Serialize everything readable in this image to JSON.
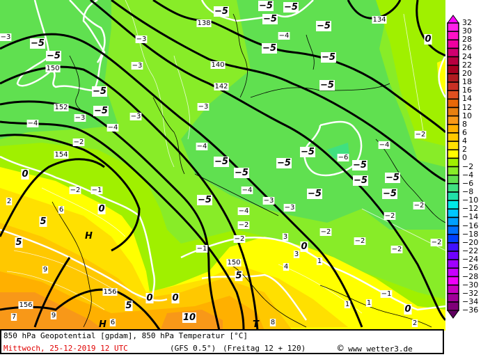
{
  "map": {
    "title": "850 hPa Geopotential [gpdam], 850 hPa Temperatur [°C]",
    "date": "Mittwoch, 25-12-2019  12 UTC",
    "model": "(GFS 0.5°)",
    "run": "(Freitag 12 + 120)",
    "copyright_symbol": "©",
    "source": "www wetter3.de",
    "geopotential_labels": [
      "138",
      "140",
      "142",
      "150",
      "152",
      "154",
      "156",
      "156",
      "150",
      "134"
    ],
    "temp_bold_labels": [
      "-5",
      "-5",
      "-5",
      "-5",
      "-5",
      "-5",
      "-5",
      "-5",
      "-5",
      "-5",
      "-5",
      "-5",
      "-5",
      "-5",
      "-5",
      "-5",
      "-5",
      "-5",
      "-5",
      "-5",
      "-5",
      "-5",
      "0",
      "0",
      "0",
      "0",
      "0",
      "0",
      "0",
      "5",
      "5",
      "5",
      "5",
      "10"
    ],
    "temp_labels": [
      "-3",
      "-3",
      "-3",
      "-3",
      "-3",
      "-3",
      "-3",
      "-4",
      "-4",
      "-4",
      "-4",
      "-4",
      "-2",
      "-2",
      "-2",
      "-2",
      "-2",
      "-2",
      "-2",
      "-2",
      "-1",
      "-1",
      "-1",
      "3",
      "2",
      "6",
      "9",
      "7",
      "9",
      "6",
      "8",
      "4",
      "3",
      "1",
      "1",
      "1",
      "2",
      "-6",
      "-4",
      "-2",
      "-2",
      "-3",
      "-4",
      "-2"
    ],
    "pressure_centers": [
      "H",
      "H",
      "T"
    ]
  },
  "legend": {
    "colors": [
      "#ff20e8",
      "#ff10c8",
      "#f000a0",
      "#d00070",
      "#b80040",
      "#a80020",
      "#b01c20",
      "#c83024",
      "#e05020",
      "#e86808",
      "#e88010",
      "#f89818",
      "#ffb000",
      "#ffc800",
      "#ffe000",
      "#ffff00",
      "#a0f000",
      "#88ec28",
      "#60e050",
      "#40e080",
      "#20e0a8",
      "#00e8e8",
      "#00c8ff",
      "#00a0ff",
      "#0070ff",
      "#0040ff",
      "#4010ff",
      "#7000ff",
      "#a000ff",
      "#c800ff",
      "#f000f8",
      "#c800c0",
      "#a00098",
      "#800078"
    ],
    "top_arrow_color": "#ff00ff",
    "bottom_arrow_color": "#600060",
    "ticks": [
      "32",
      "30",
      "28",
      "26",
      "24",
      "22",
      "20",
      "18",
      "16",
      "14",
      "12",
      "10",
      "8",
      "6",
      "4",
      "2",
      "0",
      "−2",
      "−4",
      "−6",
      "−8",
      "−10",
      "−12",
      "−14",
      "−16",
      "−18",
      "−20",
      "−22",
      "−24",
      "−26",
      "−28",
      "−30",
      "−32",
      "−34",
      "−36"
    ]
  }
}
